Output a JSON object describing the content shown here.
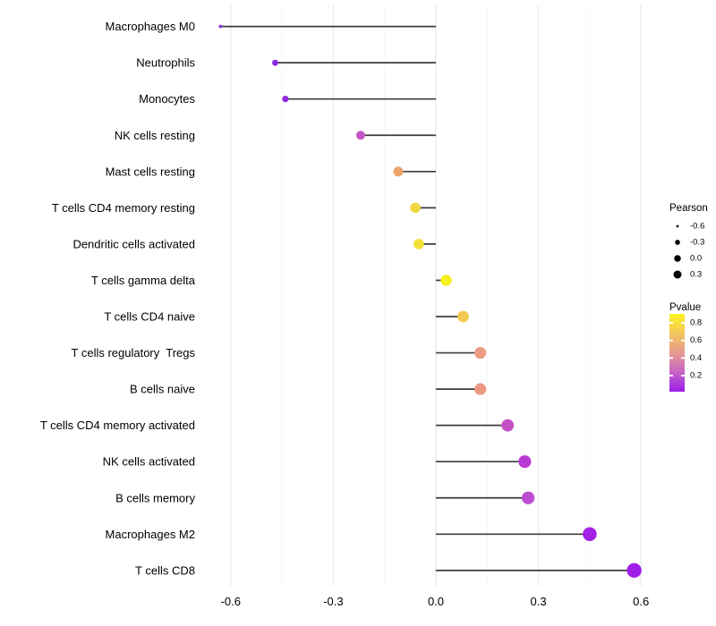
{
  "figure": {
    "background": "#ffffff"
  },
  "chart_data": {
    "type": "scatter",
    "variant": "lollipop",
    "orientation": "horizontal",
    "title": "",
    "xlabel": "",
    "ylabel": "",
    "xlim": [
      -0.65,
      0.77
    ],
    "grid": "on",
    "baseline_x": 0.0,
    "segment_color": "#3c3c3c",
    "x_axis": {
      "major_ticks": [
        -0.6,
        -0.3,
        0.0,
        0.3,
        0.6
      ],
      "major_labels": [
        "-0.6",
        "-0.3",
        "0.0",
        "0.3",
        "0.6"
      ],
      "minor_ticks": [
        -0.45,
        -0.15,
        0.15,
        0.45
      ]
    },
    "categories": [
      "Macrophages M0",
      "Neutrophils",
      "Monocytes",
      "NK cells resting",
      "Mast cells resting",
      "T cells CD4 memory resting",
      "Dendritic cells activated",
      "T cells gamma delta",
      "T cells CD4 naive",
      "T cells regulatory  Tregs",
      "B cells naive",
      "T cells CD4 memory activated",
      "NK cells activated",
      "B cells memory",
      "Macrophages M2",
      "T cells CD8"
    ],
    "points": [
      {
        "label": "Macrophages M0",
        "pearson": -0.63,
        "pvalue": 0.01,
        "color": "#8527dd"
      },
      {
        "label": "Neutrophils",
        "pearson": -0.47,
        "pvalue": 0.03,
        "color": "#8b2be2"
      },
      {
        "label": "Monocytes",
        "pearson": -0.44,
        "pvalue": 0.05,
        "color": "#912ae0"
      },
      {
        "label": "NK cells resting",
        "pearson": -0.22,
        "pvalue": 0.3,
        "color": "#c357c7"
      },
      {
        "label": "Mast cells resting",
        "pearson": -0.11,
        "pvalue": 0.6,
        "color": "#efa56d"
      },
      {
        "label": "T cells CD4 memory resting",
        "pearson": -0.06,
        "pvalue": 0.74,
        "color": "#f0d741"
      },
      {
        "label": "Dendritic cells activated",
        "pearson": -0.05,
        "pvalue": 0.78,
        "color": "#f1e135"
      },
      {
        "label": "T cells gamma delta",
        "pearson": 0.03,
        "pvalue": 0.88,
        "color": "#f6f01e"
      },
      {
        "label": "T cells CD4 naive",
        "pearson": 0.08,
        "pvalue": 0.7,
        "color": "#f2ca50"
      },
      {
        "label": "T cells regulatory  Tregs",
        "pearson": 0.13,
        "pvalue": 0.56,
        "color": "#ec9c84"
      },
      {
        "label": "B cells naive",
        "pearson": 0.13,
        "pvalue": 0.55,
        "color": "#ec9782"
      },
      {
        "label": "T cells CD4 memory activated",
        "pearson": 0.21,
        "pvalue": 0.32,
        "color": "#c550c6"
      },
      {
        "label": "NK cells activated",
        "pearson": 0.26,
        "pvalue": 0.24,
        "color": "#ba3bd3"
      },
      {
        "label": "B cells memory",
        "pearson": 0.27,
        "pvalue": 0.28,
        "color": "#be4cd1"
      },
      {
        "label": "Macrophages M2",
        "pearson": 0.45,
        "pvalue": 0.1,
        "color": "#a322e4"
      },
      {
        "label": "T cells CD8",
        "pearson": 0.58,
        "pvalue": 0.07,
        "color": "#a01fe8"
      }
    ],
    "legend_size": {
      "title": "Pearson",
      "values": [
        -0.6,
        -0.3,
        0.0,
        0.3
      ],
      "labels": [
        "-0.6",
        "-0.3",
        "0.0",
        "0.3"
      ],
      "dot_color": "#000000",
      "position": "right"
    },
    "legend_color": {
      "title": "Pvalue",
      "tick_labels": [
        "0.8",
        "0.6",
        "0.4",
        "0.2"
      ],
      "tick_values": [
        0.8,
        0.6,
        0.4,
        0.2
      ],
      "gradient_top_to_bottom": [
        {
          "offset": 0,
          "color": "#fbf321"
        },
        {
          "offset": 26,
          "color": "#f3c55f"
        },
        {
          "offset": 50,
          "color": "#e79a90"
        },
        {
          "offset": 74,
          "color": "#c966c6"
        },
        {
          "offset": 100,
          "color": "#9b1ee8"
        }
      ],
      "position": "right"
    }
  }
}
